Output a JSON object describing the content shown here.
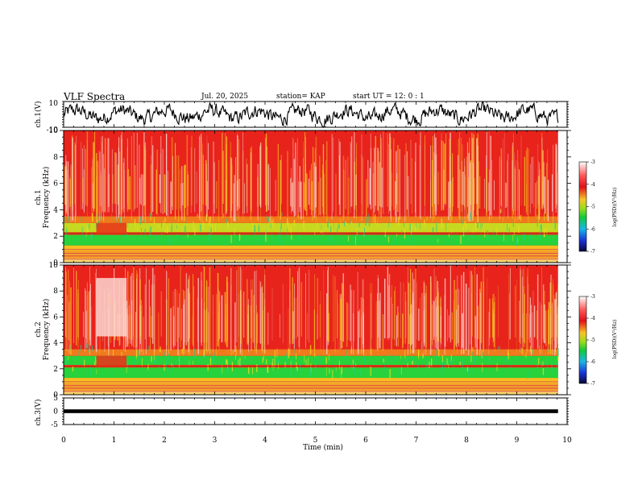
{
  "header": {
    "title": "VLF Spectra",
    "date": "Jul. 20, 2025",
    "station": "station= KAP",
    "start": "start UT =  12: 0  : 1"
  },
  "chart_data": [
    {
      "id": "ch1-waveform",
      "type": "line",
      "ylabel": "ch.1(V)",
      "ylim": [
        -10,
        10
      ],
      "yticks": [
        "10",
        "-10"
      ],
      "xlim": [
        0,
        10
      ]
    },
    {
      "id": "ch1-spectrogram",
      "type": "heatmap",
      "ylabel_ch": "ch.1",
      "ylabel": "Frequency (kHz)",
      "ylim": [
        0,
        10
      ],
      "yticks": [
        "0",
        "2",
        "4",
        "6",
        "8",
        "10"
      ],
      "colorbar": {
        "label": "log(PSD)(V²/Hz)",
        "ticks": [
          "-3",
          "-4",
          "-5",
          "-6",
          "-7"
        ],
        "range": [
          -7,
          -3
        ]
      }
    },
    {
      "id": "ch2-spectrogram",
      "type": "heatmap",
      "ylabel_ch": "ch.2",
      "ylabel": "Frequency (kHz)",
      "ylim": [
        0,
        10
      ],
      "yticks": [
        "0",
        "2",
        "4",
        "6",
        "8",
        "10"
      ],
      "colorbar": {
        "label": "log(PSD)(V²/Hz)",
        "ticks": [
          "-3",
          "-4",
          "-5",
          "-6",
          "-7"
        ],
        "range": [
          -7,
          -3
        ]
      }
    },
    {
      "id": "ch3-waveform",
      "type": "line",
      "ylabel": "ch.3(V)",
      "ylim": [
        -5,
        5
      ],
      "yticks": [
        "5",
        "0",
        "-5"
      ]
    }
  ],
  "xaxis": {
    "label": "Time (min)",
    "range": [
      0,
      10
    ],
    "ticks": [
      "0",
      "1",
      "2",
      "3",
      "4",
      "5",
      "6",
      "7",
      "8",
      "9",
      "10"
    ],
    "data_end": 9.82
  },
  "colors": {
    "wave": "#000000",
    "spec_high": "#e8231c",
    "spec_mid": "#f6c020",
    "spec_low": "#27d23c"
  }
}
